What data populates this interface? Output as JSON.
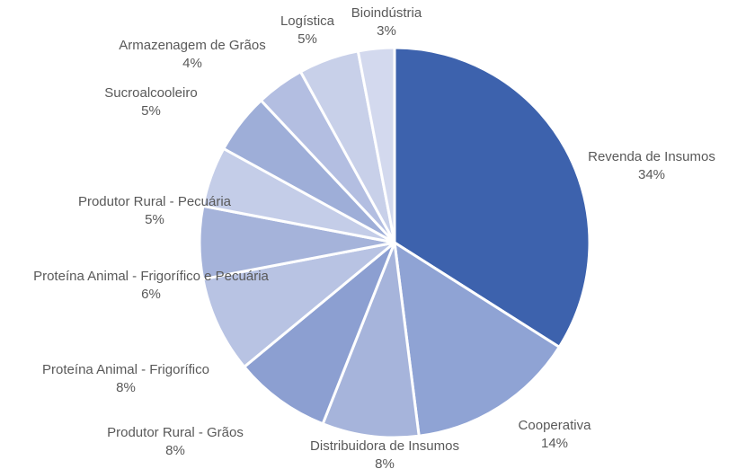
{
  "chart_data": {
    "type": "pie",
    "categories": [
      "Revenda de Insumos",
      "Cooperativa",
      "Distribuidora de Insumos",
      "Produtor Rural - Grãos",
      "Proteína Animal - Frigorífico",
      "Proteína Animal - Frigorífico e Pecuária",
      "Produtor Rural - Pecuária",
      "Sucroalcooleiro",
      "Armazenagem de Grãos",
      "Logística",
      "Bioindústria"
    ],
    "values": [
      34,
      14,
      8,
      8,
      8,
      6,
      5,
      5,
      4,
      5,
      3
    ],
    "value_labels": [
      "34%",
      "14%",
      "8%",
      "8%",
      "8%",
      "6%",
      "5%",
      "5%",
      "4%",
      "5%",
      "3%"
    ],
    "colors": [
      "#3d62ad",
      "#8fa3d4",
      "#a6b4db",
      "#8c9fd1",
      "#b8c3e3",
      "#a5b3da",
      "#c4cde8",
      "#9eaed8",
      "#b3bee1",
      "#c8d0e9",
      "#d3d9ee"
    ]
  }
}
